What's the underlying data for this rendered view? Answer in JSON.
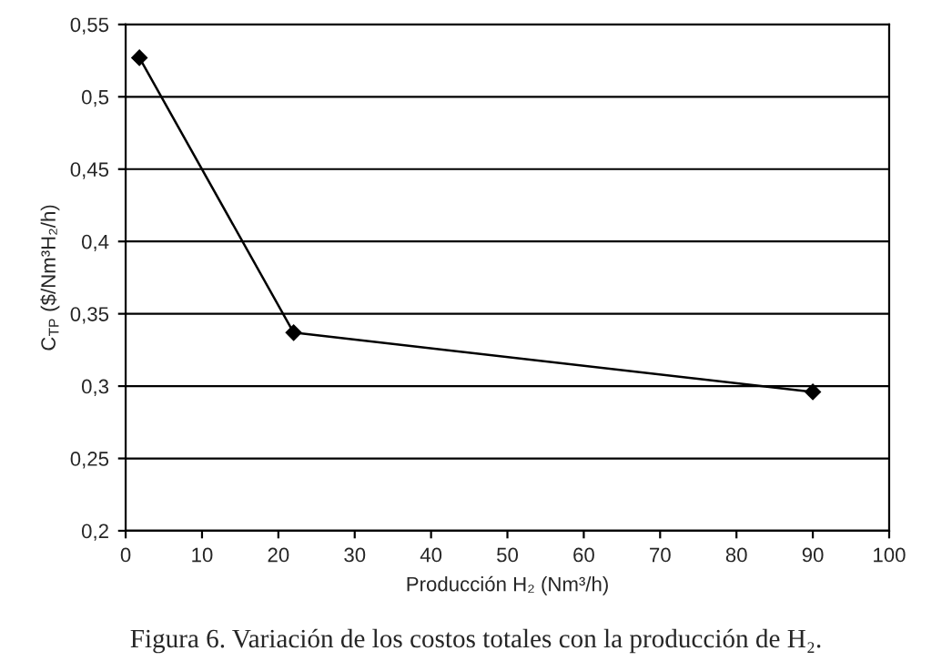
{
  "chart_data": {
    "type": "line",
    "xlabel": "Producción H₂ (Nm³/h)",
    "ylabel": "C$_{TP}$ ($/Nm³H₂/h)",
    "annotations": [
      "Figura 6. Variación de los costos totales con la producción de H₂."
    ],
    "series": [
      {
        "color": "#000000",
        "x": [
          1.8,
          22,
          90
        ],
        "values": [
          0.527,
          0.337,
          0.296
        ]
      }
    ],
    "xlim": [
      0,
      100
    ],
    "xticks": [
      0,
      10,
      20,
      30,
      40,
      50,
      60,
      70,
      80,
      90,
      100
    ],
    "ylim": [
      0.2,
      0.55
    ],
    "yticks": [
      {
        "value": 0.2,
        "label": "0,2"
      },
      {
        "value": 0.25,
        "label": "0,25"
      },
      {
        "value": 0.3,
        "label": "0,3"
      },
      {
        "value": 0.35,
        "label": "0,35"
      },
      {
        "value": 0.4,
        "label": "0,4"
      },
      {
        "value": 0.45,
        "label": "0,45"
      },
      {
        "value": 0.5,
        "label": "0,5"
      },
      {
        "value": 0.55,
        "label": "0,55"
      }
    ],
    "grid": "y",
    "marker": "diamond",
    "line_style": "solid"
  }
}
